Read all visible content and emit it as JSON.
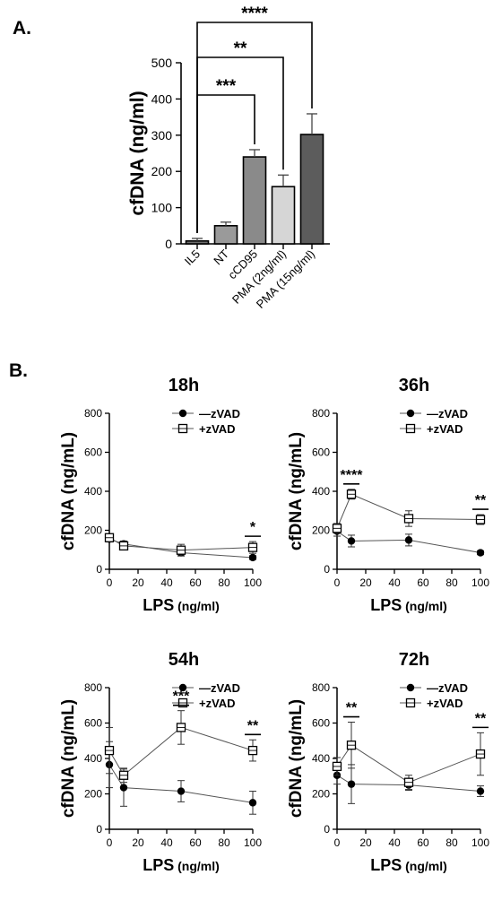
{
  "chart_data": [
    {
      "panel": "A.",
      "type": "bar",
      "title": "",
      "xlabel": "",
      "ylabel": "cfDNA (ng/ml)",
      "ylim": [
        0,
        500
      ],
      "yticks": [
        "0",
        "100",
        "200",
        "300",
        "400",
        "500"
      ],
      "categories": [
        "IL5",
        "NT",
        "cCD95",
        "PMA (2ng/ml)",
        "PMA (15ng/ml)"
      ],
      "values": [
        8,
        50,
        240,
        158,
        302
      ],
      "errors": [
        7,
        10,
        20,
        32,
        57
      ],
      "bar_colors": [
        "#6e6e6e",
        "#9a9a9a",
        "#8a8a8a",
        "#d6d6d6",
        "#5c5c5c"
      ],
      "significance": [
        {
          "label": "***",
          "from": "IL5",
          "to": "cCD95"
        },
        {
          "label": "**",
          "from": "IL5",
          "to": "PMA (2ng/ml)"
        },
        {
          "label": "****",
          "from": "IL5",
          "to": "PMA (15ng/ml)"
        }
      ]
    },
    {
      "panel": "B.",
      "type": "line",
      "title": "18h",
      "xlabel": "LPS",
      "xlabel_unit": "(ng/ml)",
      "ylabel": "cfDNA (ng/mL)",
      "x": [
        0,
        10,
        50,
        100
      ],
      "xlim": [
        0,
        100
      ],
      "ylim": [
        0,
        800
      ],
      "xticks": [
        "0",
        "20",
        "40",
        "60",
        "80",
        "100"
      ],
      "yticks": [
        "0",
        "200",
        "400",
        "600",
        "800"
      ],
      "legend_position": "top-right",
      "series": [
        {
          "name": "—zVAD",
          "marker": "filled-circle",
          "values": [
            155,
            130,
            85,
            60
          ],
          "errors": [
            15,
            15,
            15,
            10
          ]
        },
        {
          "name": "+zVAD",
          "marker": "open-square",
          "values": [
            162,
            120,
            98,
            112
          ],
          "errors": [
            15,
            15,
            30,
            30
          ]
        }
      ],
      "significance": [
        {
          "label": "*",
          "x": 100
        }
      ]
    },
    {
      "type": "line",
      "title": "36h",
      "xlabel": "LPS",
      "xlabel_unit": "(ng/ml)",
      "ylabel": "cfDNA (ng/mL)",
      "x": [
        0,
        10,
        50,
        100
      ],
      "xlim": [
        0,
        100
      ],
      "ylim": [
        0,
        800
      ],
      "xticks": [
        "0",
        "20",
        "40",
        "60",
        "80",
        "100"
      ],
      "yticks": [
        "0",
        "200",
        "400",
        "600",
        "800"
      ],
      "legend_position": "top-right",
      "series": [
        {
          "name": "—zVAD",
          "marker": "filled-circle",
          "values": [
            195,
            145,
            150,
            85
          ],
          "errors": [
            25,
            30,
            30,
            10
          ]
        },
        {
          "name": "+zVAD",
          "marker": "open-square",
          "values": [
            210,
            385,
            260,
            255
          ],
          "errors": [
            25,
            25,
            40,
            25
          ]
        }
      ],
      "significance": [
        {
          "label": "****",
          "x": 10
        },
        {
          "label": "**",
          "x": 100
        }
      ]
    },
    {
      "type": "line",
      "title": "54h",
      "xlabel": "LPS",
      "xlabel_unit": "(ng/ml)",
      "ylabel": "cfDNA (ng/mL)",
      "x": [
        0,
        10,
        50,
        100
      ],
      "xlim": [
        0,
        100
      ],
      "ylim": [
        0,
        800
      ],
      "xticks": [
        "0",
        "20",
        "40",
        "60",
        "80",
        "100"
      ],
      "yticks": [
        "0",
        "200",
        "400",
        "600",
        "800"
      ],
      "legend_position": "top-right",
      "series": [
        {
          "name": "—zVAD",
          "marker": "filled-circle",
          "values": [
            365,
            235,
            215,
            150
          ],
          "errors": [
            130,
            105,
            60,
            65
          ]
        },
        {
          "name": "+zVAD",
          "marker": "open-square",
          "values": [
            445,
            305,
            575,
            445
          ],
          "errors": [
            130,
            40,
            95,
            60
          ]
        }
      ],
      "significance": [
        {
          "label": "***",
          "x": 50
        },
        {
          "label": "**",
          "x": 100
        }
      ]
    },
    {
      "type": "line",
      "title": "72h",
      "xlabel": "LPS",
      "xlabel_unit": "(ng/ml)",
      "ylabel": "cfDNA (ng/mL)",
      "x": [
        0,
        10,
        50,
        100
      ],
      "xlim": [
        0,
        100
      ],
      "ylim": [
        0,
        800
      ],
      "xticks": [
        "0",
        "20",
        "40",
        "60",
        "80",
        "100"
      ],
      "yticks": [
        "0",
        "200",
        "400",
        "600",
        "800"
      ],
      "legend_position": "top-right",
      "series": [
        {
          "name": "—zVAD",
          "marker": "filled-circle",
          "values": [
            305,
            255,
            250,
            215
          ],
          "errors": [
            50,
            110,
            30,
            30
          ]
        },
        {
          "name": "+zVAD",
          "marker": "open-square",
          "values": [
            355,
            475,
            265,
            425
          ],
          "errors": [
            50,
            130,
            40,
            120
          ]
        }
      ],
      "significance": [
        {
          "label": "**",
          "x": 10
        },
        {
          "label": "**",
          "x": 100
        }
      ]
    }
  ]
}
